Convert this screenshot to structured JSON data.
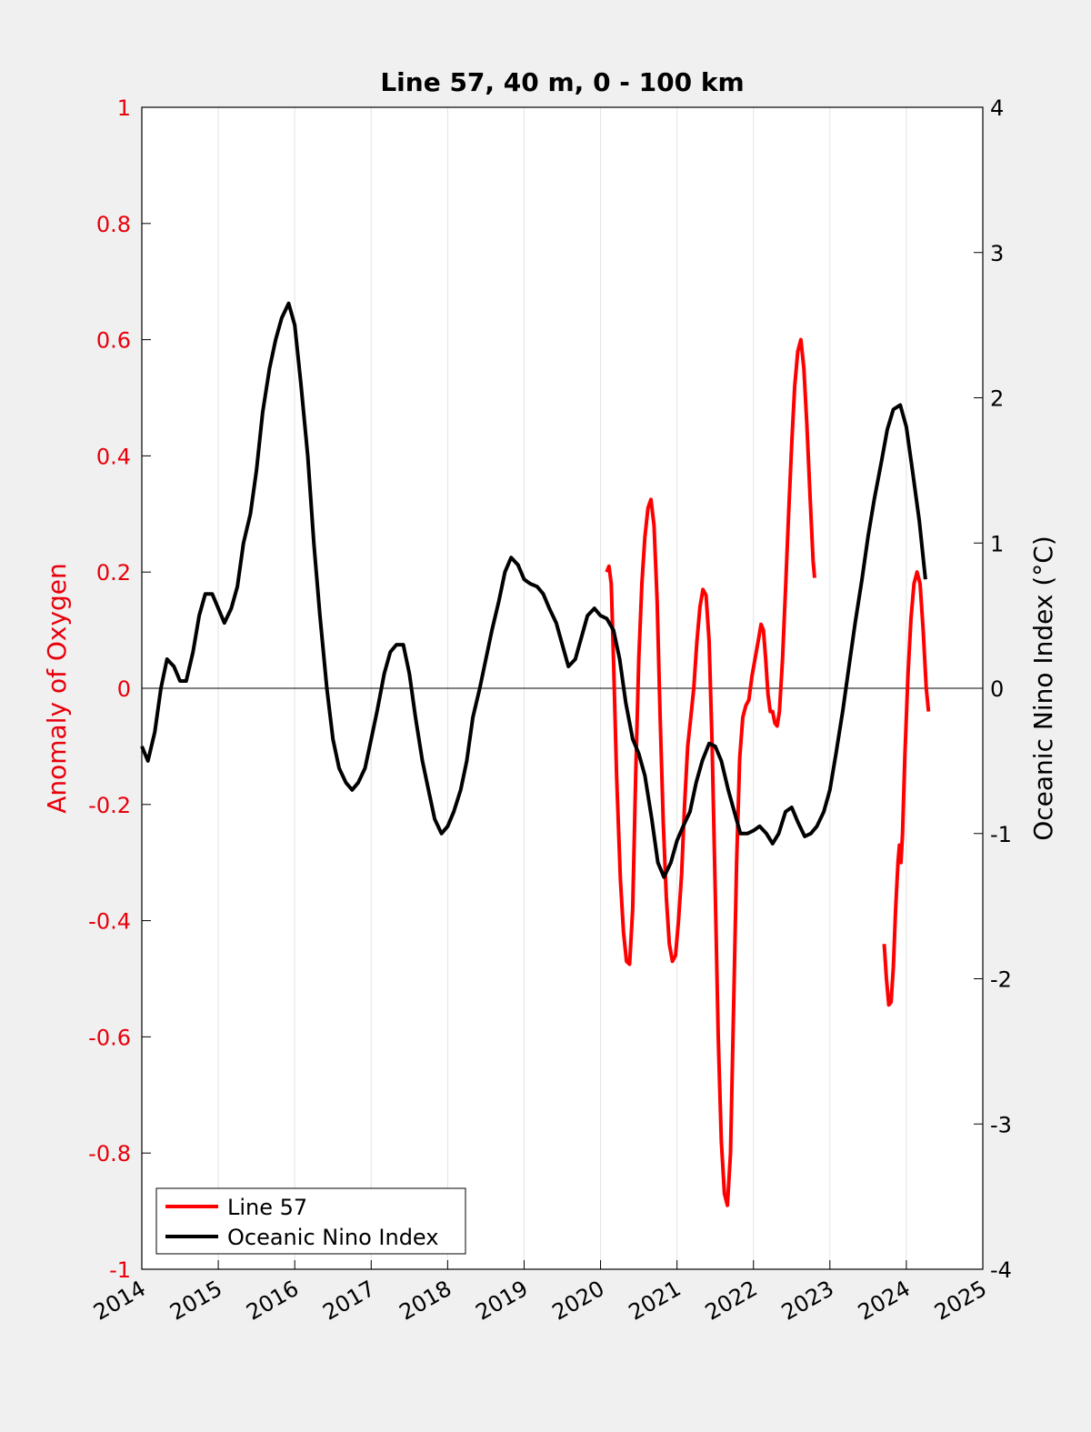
{
  "chart_data": {
    "type": "line",
    "title": "Line 57, 40 m, 0 - 100 km",
    "xlabel": "",
    "ylabel_left": "Anomaly of Oxygen",
    "ylabel_right": "Oceanic Nino Index (°C)",
    "xlim": [
      2014,
      2025
    ],
    "ylim_left": [
      -1,
      1
    ],
    "ylim_right": [
      -4,
      4
    ],
    "x_ticks": [
      "2014",
      "2015",
      "2016",
      "2017",
      "2018",
      "2019",
      "2020",
      "2021",
      "2022",
      "2023",
      "2024",
      "2025"
    ],
    "y_ticks_left": [
      "-1",
      "-0.8",
      "-0.6",
      "-0.4",
      "-0.2",
      "0",
      "0.2",
      "0.4",
      "0.6",
      "0.8",
      "1"
    ],
    "y_ticks_right": [
      "-4",
      "-3",
      "-2",
      "-1",
      "0",
      "1",
      "2",
      "3",
      "4"
    ],
    "grid": "vertical",
    "legend_position": "bottom-left",
    "colors": {
      "oxygen": "#ff0000",
      "oni": "#000000",
      "left_axis": "#e8000b"
    },
    "series": [
      {
        "name": "Line 57",
        "axis": "left",
        "color": "#ff0000",
        "segments": [
          [
            [
              2020.08,
              0.2
            ],
            [
              2020.11,
              0.21
            ],
            [
              2020.14,
              0.18
            ],
            [
              2020.17,
              0.05
            ],
            [
              2020.21,
              -0.15
            ],
            [
              2020.26,
              -0.33
            ],
            [
              2020.3,
              -0.42
            ],
            [
              2020.34,
              -0.47
            ],
            [
              2020.38,
              -0.475
            ],
            [
              2020.42,
              -0.38
            ],
            [
              2020.46,
              -0.15
            ],
            [
              2020.5,
              0.05
            ],
            [
              2020.54,
              0.18
            ],
            [
              2020.58,
              0.26
            ],
            [
              2020.62,
              0.31
            ],
            [
              2020.66,
              0.325
            ],
            [
              2020.7,
              0.28
            ],
            [
              2020.74,
              0.15
            ],
            [
              2020.78,
              -0.05
            ],
            [
              2020.82,
              -0.23
            ],
            [
              2020.86,
              -0.36
            ],
            [
              2020.9,
              -0.44
            ],
            [
              2020.94,
              -0.47
            ],
            [
              2020.98,
              -0.46
            ],
            [
              2021.02,
              -0.4
            ],
            [
              2021.06,
              -0.32
            ],
            [
              2021.1,
              -0.2
            ],
            [
              2021.14,
              -0.1
            ],
            [
              2021.18,
              -0.05
            ],
            [
              2021.22,
              0.0
            ],
            [
              2021.26,
              0.08
            ],
            [
              2021.3,
              0.14
            ],
            [
              2021.34,
              0.17
            ],
            [
              2021.38,
              0.16
            ],
            [
              2021.42,
              0.08
            ],
            [
              2021.46,
              -0.1
            ],
            [
              2021.5,
              -0.35
            ],
            [
              2021.54,
              -0.6
            ],
            [
              2021.58,
              -0.78
            ],
            [
              2021.62,
              -0.87
            ],
            [
              2021.66,
              -0.89
            ],
            [
              2021.7,
              -0.8
            ],
            [
              2021.74,
              -0.55
            ],
            [
              2021.78,
              -0.3
            ],
            [
              2021.82,
              -0.12
            ],
            [
              2021.86,
              -0.05
            ],
            [
              2021.9,
              -0.03
            ],
            [
              2021.94,
              -0.02
            ],
            [
              2021.98,
              0.02
            ],
            [
              2022.02,
              0.05
            ],
            [
              2022.06,
              0.08
            ],
            [
              2022.1,
              0.11
            ],
            [
              2022.13,
              0.1
            ],
            [
              2022.16,
              0.05
            ],
            [
              2022.19,
              -0.01
            ],
            [
              2022.22,
              -0.04
            ],
            [
              2022.25,
              -0.04
            ],
            [
              2022.28,
              -0.06
            ],
            [
              2022.31,
              -0.065
            ],
            [
              2022.34,
              -0.04
            ],
            [
              2022.38,
              0.05
            ],
            [
              2022.42,
              0.17
            ],
            [
              2022.46,
              0.3
            ],
            [
              2022.5,
              0.42
            ],
            [
              2022.54,
              0.52
            ],
            [
              2022.58,
              0.58
            ],
            [
              2022.62,
              0.6
            ],
            [
              2022.66,
              0.55
            ],
            [
              2022.7,
              0.45
            ],
            [
              2022.74,
              0.33
            ],
            [
              2022.78,
              0.22
            ],
            [
              2022.8,
              0.19
            ]
          ],
          [
            [
              2023.71,
              -0.44
            ],
            [
              2023.74,
              -0.5
            ],
            [
              2023.77,
              -0.545
            ],
            [
              2023.8,
              -0.54
            ],
            [
              2023.83,
              -0.48
            ],
            [
              2023.86,
              -0.38
            ],
            [
              2023.89,
              -0.3
            ],
            [
              2023.91,
              -0.27
            ],
            [
              2023.93,
              -0.3
            ],
            [
              2023.95,
              -0.25
            ],
            [
              2023.98,
              -0.12
            ],
            [
              2024.02,
              0.02
            ],
            [
              2024.06,
              0.12
            ],
            [
              2024.1,
              0.18
            ],
            [
              2024.14,
              0.2
            ],
            [
              2024.18,
              0.18
            ],
            [
              2024.22,
              0.1
            ],
            [
              2024.26,
              0.0
            ],
            [
              2024.29,
              -0.04
            ]
          ]
        ]
      },
      {
        "name": "Oceanic Nino Index",
        "axis": "right",
        "color": "#000000",
        "segments": [
          [
            [
              2014.0,
              -0.4
            ],
            [
              2014.08,
              -0.5
            ],
            [
              2014.17,
              -0.3
            ],
            [
              2014.25,
              0.0
            ],
            [
              2014.33,
              0.2
            ],
            [
              2014.42,
              0.15
            ],
            [
              2014.5,
              0.05
            ],
            [
              2014.58,
              0.05
            ],
            [
              2014.67,
              0.25
            ],
            [
              2014.75,
              0.5
            ],
            [
              2014.83,
              0.65
            ],
            [
              2014.92,
              0.65
            ],
            [
              2015.0,
              0.55
            ],
            [
              2015.08,
              0.45
            ],
            [
              2015.17,
              0.55
            ],
            [
              2015.25,
              0.7
            ],
            [
              2015.33,
              1.0
            ],
            [
              2015.42,
              1.2
            ],
            [
              2015.5,
              1.5
            ],
            [
              2015.58,
              1.9
            ],
            [
              2015.67,
              2.2
            ],
            [
              2015.75,
              2.4
            ],
            [
              2015.83,
              2.55
            ],
            [
              2015.92,
              2.65
            ],
            [
              2016.0,
              2.5
            ],
            [
              2016.08,
              2.1
            ],
            [
              2016.17,
              1.6
            ],
            [
              2016.25,
              1.0
            ],
            [
              2016.33,
              0.5
            ],
            [
              2016.42,
              0.0
            ],
            [
              2016.5,
              -0.35
            ],
            [
              2016.58,
              -0.55
            ],
            [
              2016.67,
              -0.65
            ],
            [
              2016.75,
              -0.7
            ],
            [
              2016.83,
              -0.65
            ],
            [
              2016.92,
              -0.55
            ],
            [
              2017.0,
              -0.35
            ],
            [
              2017.08,
              -0.15
            ],
            [
              2017.17,
              0.1
            ],
            [
              2017.25,
              0.25
            ],
            [
              2017.33,
              0.3
            ],
            [
              2017.42,
              0.3
            ],
            [
              2017.5,
              0.1
            ],
            [
              2017.58,
              -0.2
            ],
            [
              2017.67,
              -0.5
            ],
            [
              2017.75,
              -0.7
            ],
            [
              2017.83,
              -0.9
            ],
            [
              2017.92,
              -1.0
            ],
            [
              2018.0,
              -0.95
            ],
            [
              2018.08,
              -0.85
            ],
            [
              2018.17,
              -0.7
            ],
            [
              2018.25,
              -0.5
            ],
            [
              2018.33,
              -0.2
            ],
            [
              2018.42,
              0.0
            ],
            [
              2018.5,
              0.2
            ],
            [
              2018.58,
              0.4
            ],
            [
              2018.67,
              0.6
            ],
            [
              2018.75,
              0.8
            ],
            [
              2018.83,
              0.9
            ],
            [
              2018.92,
              0.85
            ],
            [
              2019.0,
              0.75
            ],
            [
              2019.08,
              0.72
            ],
            [
              2019.17,
              0.7
            ],
            [
              2019.25,
              0.65
            ],
            [
              2019.33,
              0.55
            ],
            [
              2019.42,
              0.45
            ],
            [
              2019.5,
              0.3
            ],
            [
              2019.58,
              0.15
            ],
            [
              2019.67,
              0.2
            ],
            [
              2019.75,
              0.35
            ],
            [
              2019.83,
              0.5
            ],
            [
              2019.92,
              0.55
            ],
            [
              2020.0,
              0.5
            ],
            [
              2020.08,
              0.48
            ],
            [
              2020.17,
              0.4
            ],
            [
              2020.25,
              0.2
            ],
            [
              2020.33,
              -0.1
            ],
            [
              2020.42,
              -0.35
            ],
            [
              2020.5,
              -0.45
            ],
            [
              2020.58,
              -0.6
            ],
            [
              2020.67,
              -0.9
            ],
            [
              2020.75,
              -1.2
            ],
            [
              2020.83,
              -1.3
            ],
            [
              2020.92,
              -1.2
            ],
            [
              2021.0,
              -1.05
            ],
            [
              2021.08,
              -0.95
            ],
            [
              2021.17,
              -0.85
            ],
            [
              2021.25,
              -0.65
            ],
            [
              2021.33,
              -0.5
            ],
            [
              2021.42,
              -0.38
            ],
            [
              2021.5,
              -0.4
            ],
            [
              2021.58,
              -0.5
            ],
            [
              2021.67,
              -0.7
            ],
            [
              2021.75,
              -0.85
            ],
            [
              2021.83,
              -1.0
            ],
            [
              2021.92,
              -1.0
            ],
            [
              2022.0,
              -0.98
            ],
            [
              2022.08,
              -0.95
            ],
            [
              2022.17,
              -1.0
            ],
            [
              2022.25,
              -1.07
            ],
            [
              2022.33,
              -1.0
            ],
            [
              2022.42,
              -0.85
            ],
            [
              2022.5,
              -0.82
            ],
            [
              2022.58,
              -0.92
            ],
            [
              2022.67,
              -1.02
            ],
            [
              2022.75,
              -1.0
            ],
            [
              2022.83,
              -0.95
            ],
            [
              2022.92,
              -0.85
            ],
            [
              2023.0,
              -0.7
            ],
            [
              2023.08,
              -0.45
            ],
            [
              2023.17,
              -0.15
            ],
            [
              2023.25,
              0.15
            ],
            [
              2023.33,
              0.45
            ],
            [
              2023.42,
              0.75
            ],
            [
              2023.5,
              1.05
            ],
            [
              2023.58,
              1.3
            ],
            [
              2023.67,
              1.55
            ],
            [
              2023.75,
              1.78
            ],
            [
              2023.83,
              1.92
            ],
            [
              2023.92,
              1.95
            ],
            [
              2024.0,
              1.8
            ],
            [
              2024.08,
              1.5
            ],
            [
              2024.17,
              1.15
            ],
            [
              2024.25,
              0.75
            ]
          ]
        ]
      }
    ]
  }
}
